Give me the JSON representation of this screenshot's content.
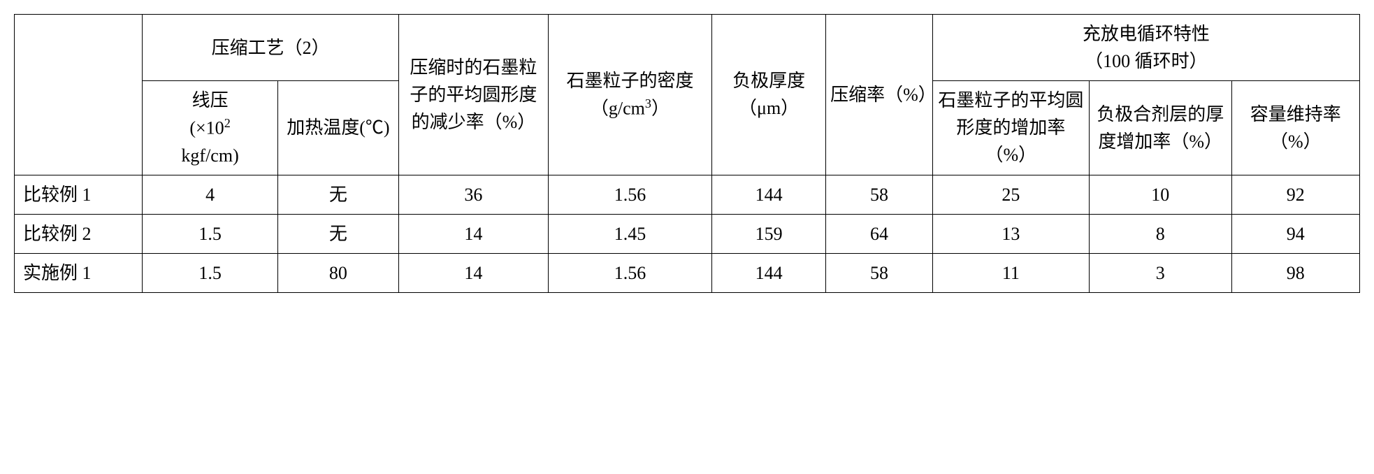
{
  "table": {
    "header_group_1": "压缩工艺（2）",
    "header_col_3": "压缩时的石墨粒子的平均圆形度的减少率（%）",
    "header_col_4_line1": "石墨粒子的密度",
    "header_col_4_line2": "（g/cm",
    "header_col_4_sup": "3",
    "header_col_4_line2_end": "）",
    "header_col_5": "负极厚度（μm）",
    "header_col_6": "压缩率（%）",
    "header_group_2_line1": "充放电循环特性",
    "header_group_2_line2": "（100 循环时）",
    "sub_col_1_line1": "线压",
    "sub_col_1_line2a": "(×10",
    "sub_col_1_sup": "2",
    "sub_col_1_line2b": "",
    "sub_col_1_line3": "kgf/cm)",
    "sub_col_2": "加热温度(℃)",
    "sub_col_7": "石墨粒子的平均圆形度的增加率（%）",
    "sub_col_8": "负极合剂层的厚度增加率（%）",
    "sub_col_9": "容量维持率（%）",
    "rows": [
      {
        "label": "比较例 1",
        "c1": "4",
        "c2": "无",
        "c3": "36",
        "c4": "1.56",
        "c5": "144",
        "c6": "58",
        "c7": "25",
        "c8": "10",
        "c9": "92"
      },
      {
        "label": "比较例 2",
        "c1": "1.5",
        "c2": "无",
        "c3": "14",
        "c4": "1.45",
        "c5": "159",
        "c6": "64",
        "c7": "13",
        "c8": "8",
        "c9": "94"
      },
      {
        "label": "实施例 1",
        "c1": "1.5",
        "c2": "80",
        "c3": "14",
        "c4": "1.56",
        "c5": "144",
        "c6": "58",
        "c7": "11",
        "c8": "3",
        "c9": "98"
      }
    ]
  }
}
